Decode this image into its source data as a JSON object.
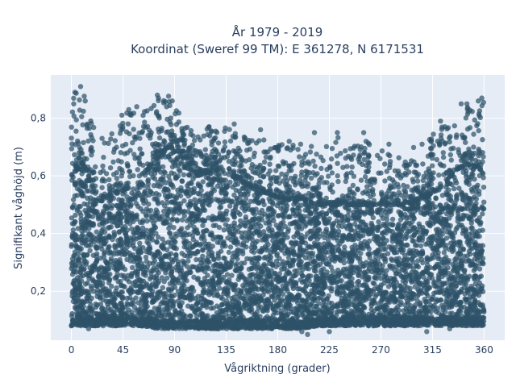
{
  "chart_data": {
    "type": "scatter",
    "title_lines": [
      "År 1979 - 2019",
      "Koordinat (Sweref 99 TM): E 361278, N 6171531"
    ],
    "xlabel": "Vågriktning (grader)",
    "ylabel": "Signifikant våghöjd (m)",
    "xlim": [
      -18,
      378
    ],
    "ylim": [
      0.03,
      0.95
    ],
    "xticks": [
      0,
      45,
      90,
      135,
      180,
      225,
      270,
      315,
      360
    ],
    "xtick_labels": [
      "0",
      "45",
      "90",
      "135",
      "180",
      "225",
      "270",
      "315",
      "360"
    ],
    "yticks": [
      0.2,
      0.4,
      0.6,
      0.8
    ],
    "ytick_labels": [
      "0,2",
      "0,4",
      "0,6",
      "0,8"
    ],
    "grid": true,
    "legend": "none",
    "colors": {
      "marker": "#2e5268",
      "plot_bg": "#e5ecf6",
      "grid": "#ffffff",
      "text": "#2a3f5f"
    },
    "envelope": {
      "description_values": "approximate upper/lower bounds of dense point cloud vs direction",
      "x": [
        0,
        10,
        20,
        30,
        45,
        60,
        75,
        85,
        95,
        110,
        125,
        140,
        155,
        170,
        185,
        200,
        215,
        230,
        245,
        260,
        275,
        290,
        305,
        320,
        335,
        345,
        355,
        360
      ],
      "dense_upper": [
        0.6,
        0.64,
        0.55,
        0.52,
        0.55,
        0.58,
        0.66,
        0.7,
        0.68,
        0.6,
        0.62,
        0.6,
        0.56,
        0.54,
        0.52,
        0.52,
        0.5,
        0.5,
        0.5,
        0.5,
        0.5,
        0.5,
        0.52,
        0.55,
        0.62,
        0.64,
        0.63,
        0.6
      ],
      "dense_lower": [
        0.08,
        0.08,
        0.08,
        0.08,
        0.08,
        0.08,
        0.07,
        0.07,
        0.07,
        0.07,
        0.07,
        0.07,
        0.07,
        0.07,
        0.07,
        0.07,
        0.08,
        0.08,
        0.08,
        0.08,
        0.08,
        0.08,
        0.08,
        0.08,
        0.08,
        0.08,
        0.08,
        0.08
      ],
      "max_upper": [
        0.88,
        0.91,
        0.78,
        0.72,
        0.82,
        0.84,
        0.86,
        0.88,
        0.82,
        0.76,
        0.78,
        0.76,
        0.74,
        0.74,
        0.72,
        0.7,
        0.72,
        0.74,
        0.75,
        0.72,
        0.68,
        0.66,
        0.74,
        0.78,
        0.8,
        0.84,
        0.87,
        0.86
      ]
    },
    "outliers": [
      {
        "x": 3,
        "y": 0.89
      },
      {
        "x": 8,
        "y": 0.91
      },
      {
        "x": 2,
        "y": 0.85
      },
      {
        "x": 12,
        "y": 0.86
      },
      {
        "x": 75,
        "y": 0.88
      },
      {
        "x": 76,
        "y": 0.87
      },
      {
        "x": 83,
        "y": 0.84
      },
      {
        "x": 88,
        "y": 0.86
      },
      {
        "x": 57,
        "y": 0.84
      },
      {
        "x": 50,
        "y": 0.83
      },
      {
        "x": 142,
        "y": 0.78
      },
      {
        "x": 165,
        "y": 0.76
      },
      {
        "x": 190,
        "y": 0.72
      },
      {
        "x": 200,
        "y": 0.71
      },
      {
        "x": 212,
        "y": 0.75
      },
      {
        "x": 232,
        "y": 0.75
      },
      {
        "x": 255,
        "y": 0.75
      },
      {
        "x": 257,
        "y": 0.72
      },
      {
        "x": 277,
        "y": 0.71
      },
      {
        "x": 322,
        "y": 0.79
      },
      {
        "x": 340,
        "y": 0.85
      },
      {
        "x": 345,
        "y": 0.85
      },
      {
        "x": 355,
        "y": 0.86
      },
      {
        "x": 358,
        "y": 0.87
      },
      {
        "x": 201,
        "y": 0.06
      },
      {
        "x": 206,
        "y": 0.05
      },
      {
        "x": 225,
        "y": 0.06
      },
      {
        "x": 310,
        "y": 0.06
      },
      {
        "x": 330,
        "y": 0.07
      },
      {
        "x": 15,
        "y": 0.07
      },
      {
        "x": 0,
        "y": 0.08
      }
    ]
  }
}
